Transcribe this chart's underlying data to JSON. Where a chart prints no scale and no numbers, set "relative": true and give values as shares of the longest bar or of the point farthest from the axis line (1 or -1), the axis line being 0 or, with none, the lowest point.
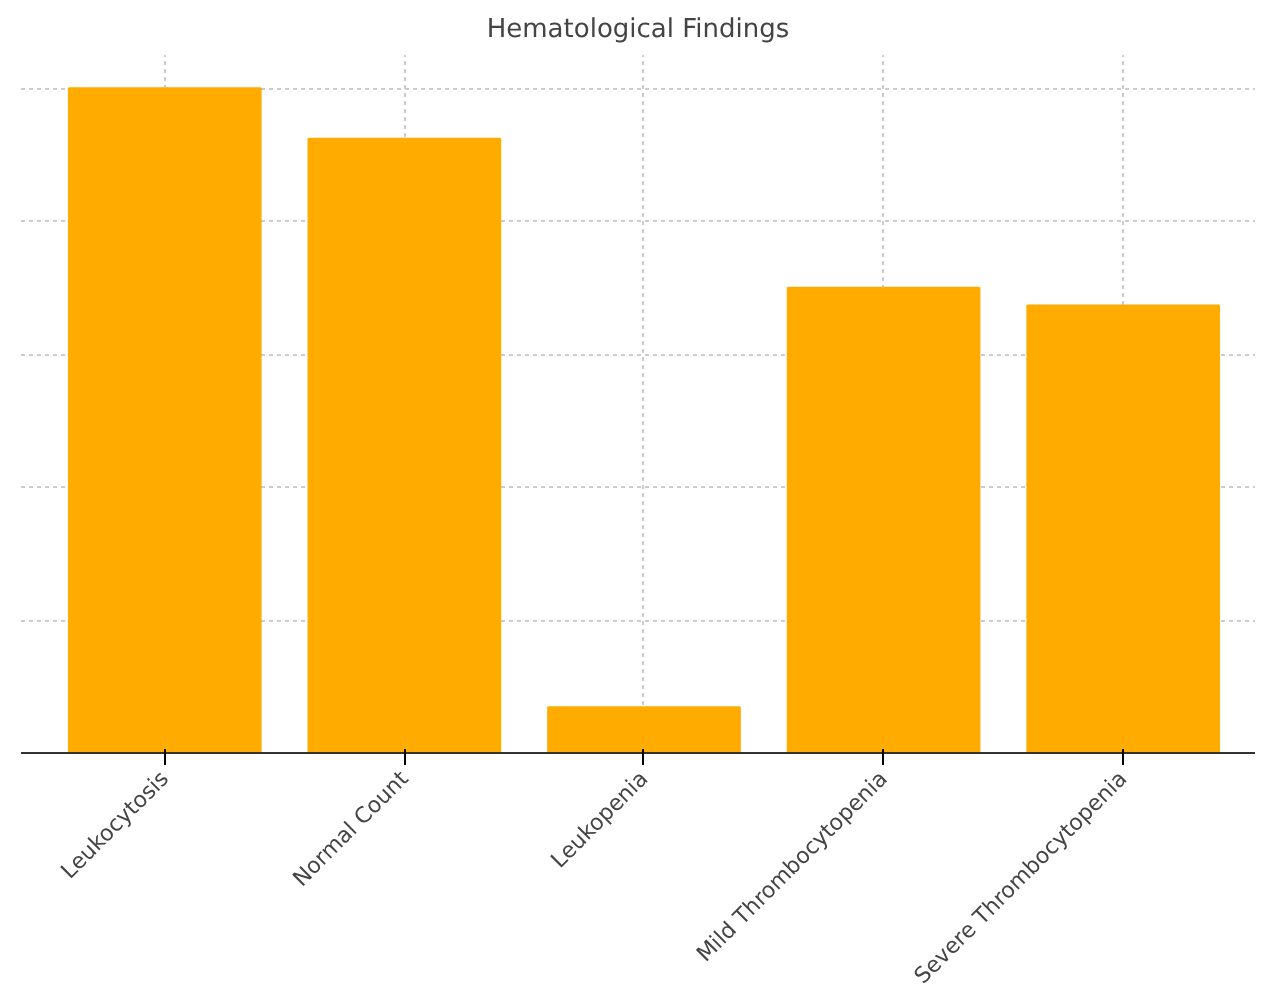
{
  "chart_data": {
    "type": "bar",
    "title": "Hematological Findings",
    "categories": [
      "Leukocytosis",
      "Normal Count",
      "Leukopenia",
      "Mild Thrombocytopenia",
      "Severe Thrombocytopenia"
    ],
    "values": [
      1,
      0.924,
      0.069,
      0.7,
      0.673
    ],
    "color": "#ffab00",
    "relative": true,
    "grid": true
  }
}
